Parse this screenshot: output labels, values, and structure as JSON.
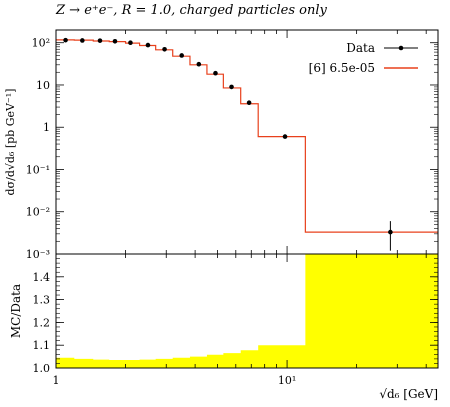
{
  "title": "Z → e⁺e⁻, R = 1.0, charged particles only",
  "chart_data": [
    {
      "type": "line",
      "panel": "main",
      "ylabel": "dσ/d√d₆ [pb GeV⁻¹]",
      "yscale": "log",
      "xscale": "log",
      "xlim": [
        1,
        45
      ],
      "ylim": [
        0.001,
        200
      ],
      "ytick_labels": [
        "10⁻³",
        "10⁻²",
        "10⁻¹",
        "1",
        "10",
        "10²"
      ],
      "legend": {
        "placement": "top-right",
        "entries": [
          "Data",
          "[6] 6.5e-05"
        ]
      },
      "series": [
        {
          "name": "Data",
          "style": "points",
          "color": "#000000",
          "x": [
            1.1,
            1.3,
            1.55,
            1.8,
            2.1,
            2.5,
            2.95,
            3.5,
            4.15,
            4.9,
            5.75,
            6.85,
            9.8,
            28
          ],
          "y": [
            115,
            113,
            112,
            108,
            100,
            88,
            70,
            50,
            31,
            19,
            9,
            3.8,
            0.6,
            0.0033
          ],
          "yerr_low": [
            0,
            0,
            0,
            0,
            0,
            0,
            0,
            0,
            0,
            0,
            0,
            0,
            0,
            0.0021
          ],
          "yerr_high": [
            0,
            0,
            0,
            0,
            0,
            0,
            0,
            0,
            0,
            0,
            0,
            0,
            0,
            0.0027
          ]
        },
        {
          "name": "[6] 6.5e-05",
          "style": "histogram",
          "color": "#e8401c",
          "edges": [
            1.0,
            1.2,
            1.45,
            1.7,
            2.0,
            2.3,
            2.7,
            3.2,
            3.8,
            4.5,
            5.3,
            6.3,
            7.5,
            12.0,
            45.0
          ],
          "values": [
            117,
            115,
            110,
            106,
            98,
            86,
            68,
            48,
            30,
            18,
            8.5,
            3.6,
            0.6,
            0.0033
          ]
        }
      ]
    },
    {
      "type": "area",
      "panel": "ratio",
      "xlabel": "√d₆ [GeV]",
      "ylabel": "MC/Data",
      "xscale": "log",
      "xlim": [
        1,
        45
      ],
      "ylim": [
        1.0,
        1.5
      ],
      "ytick_labels": [
        "1.0",
        "1.1",
        "1.2",
        "1.3",
        "1.4"
      ],
      "xtick_labels": [
        "1",
        "10¹"
      ],
      "series": [
        {
          "name": "uncertainty band",
          "color": "#ffff00",
          "edges": [
            1.0,
            1.2,
            1.45,
            1.7,
            2.0,
            2.3,
            2.7,
            3.2,
            3.8,
            4.5,
            5.3,
            6.3,
            7.5,
            12.0,
            45.0
          ],
          "upper": [
            1.045,
            1.04,
            1.037,
            1.035,
            1.035,
            1.037,
            1.04,
            1.045,
            1.05,
            1.058,
            1.065,
            1.078,
            1.1,
            1.5
          ],
          "lower": [
            1.0,
            1.0,
            1.0,
            1.0,
            1.0,
            1.0,
            1.0,
            1.0,
            1.0,
            1.0,
            1.0,
            1.0,
            1.0,
            1.0
          ]
        }
      ]
    }
  ]
}
